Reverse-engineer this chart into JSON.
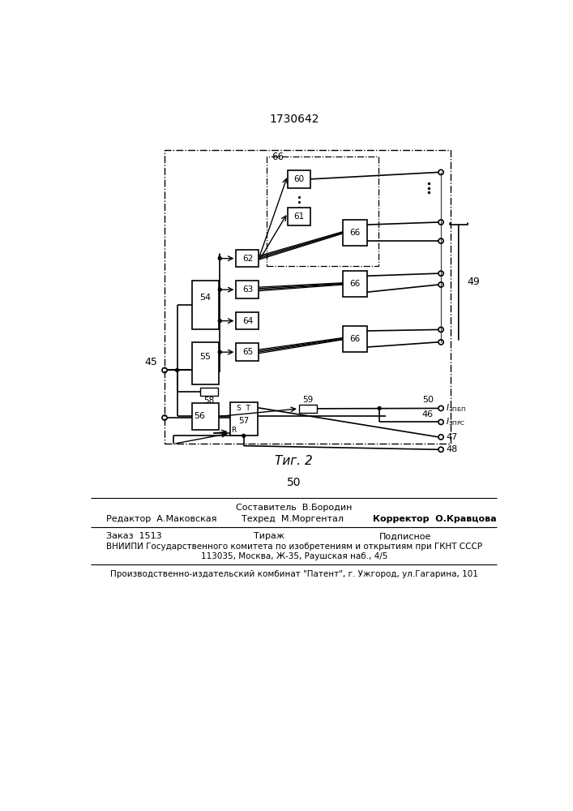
{
  "title": "1730642",
  "fig_label": "Τиг. 2",
  "page_number": "50",
  "bg_color": "#ffffff",
  "line_color": "#000000"
}
